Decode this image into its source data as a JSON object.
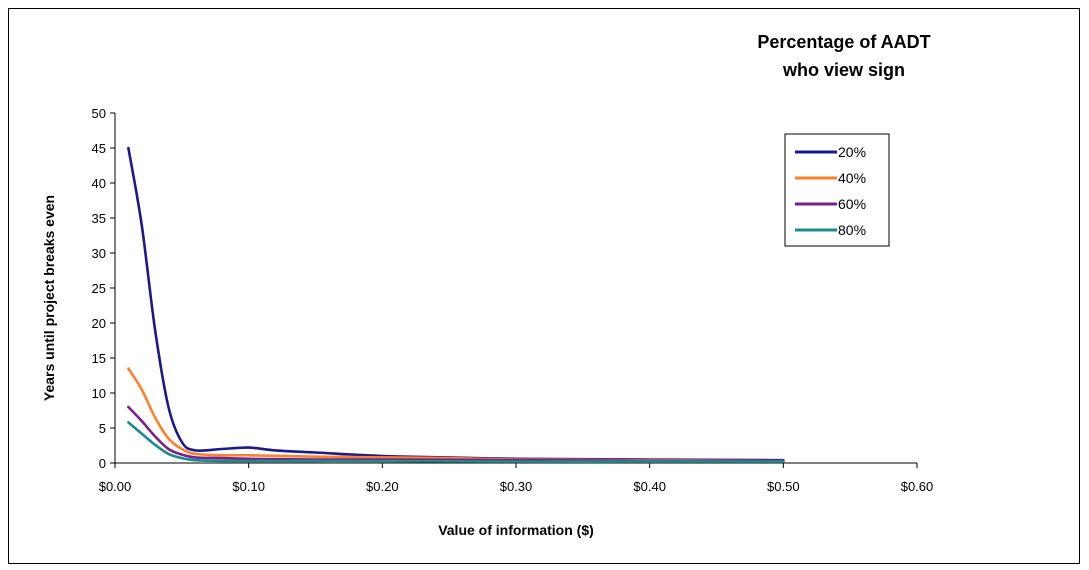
{
  "chart_data": {
    "type": "line",
    "title": "",
    "xlabel": "Value of information ($)",
    "ylabel": "Years until project breaks even",
    "xlim": [
      0,
      0.6
    ],
    "ylim": [
      0,
      50
    ],
    "x_ticks": [
      {
        "value": 0.0,
        "label": "$0.00"
      },
      {
        "value": 0.1,
        "label": "$0.10"
      },
      {
        "value": 0.2,
        "label": "$0.20"
      },
      {
        "value": 0.3,
        "label": "$0.30"
      },
      {
        "value": 0.4,
        "label": "$0.40"
      },
      {
        "value": 0.5,
        "label": "$0.50"
      },
      {
        "value": 0.6,
        "label": "$0.60"
      }
    ],
    "y_ticks": [
      0,
      5,
      10,
      15,
      20,
      25,
      30,
      35,
      40,
      45,
      50
    ],
    "grid": false,
    "legend": {
      "title_lines": [
        "Percentage of AADT",
        "who view sign"
      ],
      "position": "top-right"
    },
    "series": [
      {
        "name": "20%",
        "color": "#1a1a8c",
        "points": [
          [
            0.01,
            45
          ],
          [
            0.02,
            34
          ],
          [
            0.03,
            19
          ],
          [
            0.04,
            8
          ],
          [
            0.05,
            3
          ],
          [
            0.06,
            1.8
          ],
          [
            0.08,
            2
          ],
          [
            0.1,
            2.2
          ],
          [
            0.12,
            1.8
          ],
          [
            0.15,
            1.5
          ],
          [
            0.2,
            1
          ],
          [
            0.25,
            0.8
          ],
          [
            0.3,
            0.6
          ],
          [
            0.4,
            0.5
          ],
          [
            0.5,
            0.4
          ]
        ]
      },
      {
        "name": "40%",
        "color": "#ff7f2a",
        "points": [
          [
            0.01,
            13.5
          ],
          [
            0.02,
            10.5
          ],
          [
            0.03,
            6.5
          ],
          [
            0.04,
            3.5
          ],
          [
            0.05,
            2
          ],
          [
            0.06,
            1.3
          ],
          [
            0.08,
            1.1
          ],
          [
            0.1,
            1.1
          ],
          [
            0.15,
            0.9
          ],
          [
            0.2,
            0.8
          ],
          [
            0.25,
            0.7
          ],
          [
            0.3,
            0.5
          ],
          [
            0.4,
            0.4
          ],
          [
            0.5,
            0.3
          ]
        ]
      },
      {
        "name": "60%",
        "color": "#7a1f8c",
        "points": [
          [
            0.01,
            8
          ],
          [
            0.02,
            6
          ],
          [
            0.03,
            3.8
          ],
          [
            0.04,
            2
          ],
          [
            0.05,
            1.2
          ],
          [
            0.06,
            0.8
          ],
          [
            0.08,
            0.7
          ],
          [
            0.1,
            0.6
          ],
          [
            0.15,
            0.5
          ],
          [
            0.2,
            0.5
          ],
          [
            0.3,
            0.4
          ],
          [
            0.4,
            0.3
          ],
          [
            0.5,
            0.3
          ]
        ]
      },
      {
        "name": "80%",
        "color": "#1a8c8c",
        "points": [
          [
            0.01,
            5.8
          ],
          [
            0.02,
            4.2
          ],
          [
            0.03,
            2.6
          ],
          [
            0.04,
            1.3
          ],
          [
            0.05,
            0.7
          ],
          [
            0.06,
            0.4
          ],
          [
            0.08,
            0.3
          ],
          [
            0.1,
            0.3
          ],
          [
            0.15,
            0.3
          ],
          [
            0.2,
            0.3
          ],
          [
            0.3,
            0.2
          ],
          [
            0.4,
            0.2
          ],
          [
            0.5,
            0.2
          ]
        ]
      }
    ]
  }
}
